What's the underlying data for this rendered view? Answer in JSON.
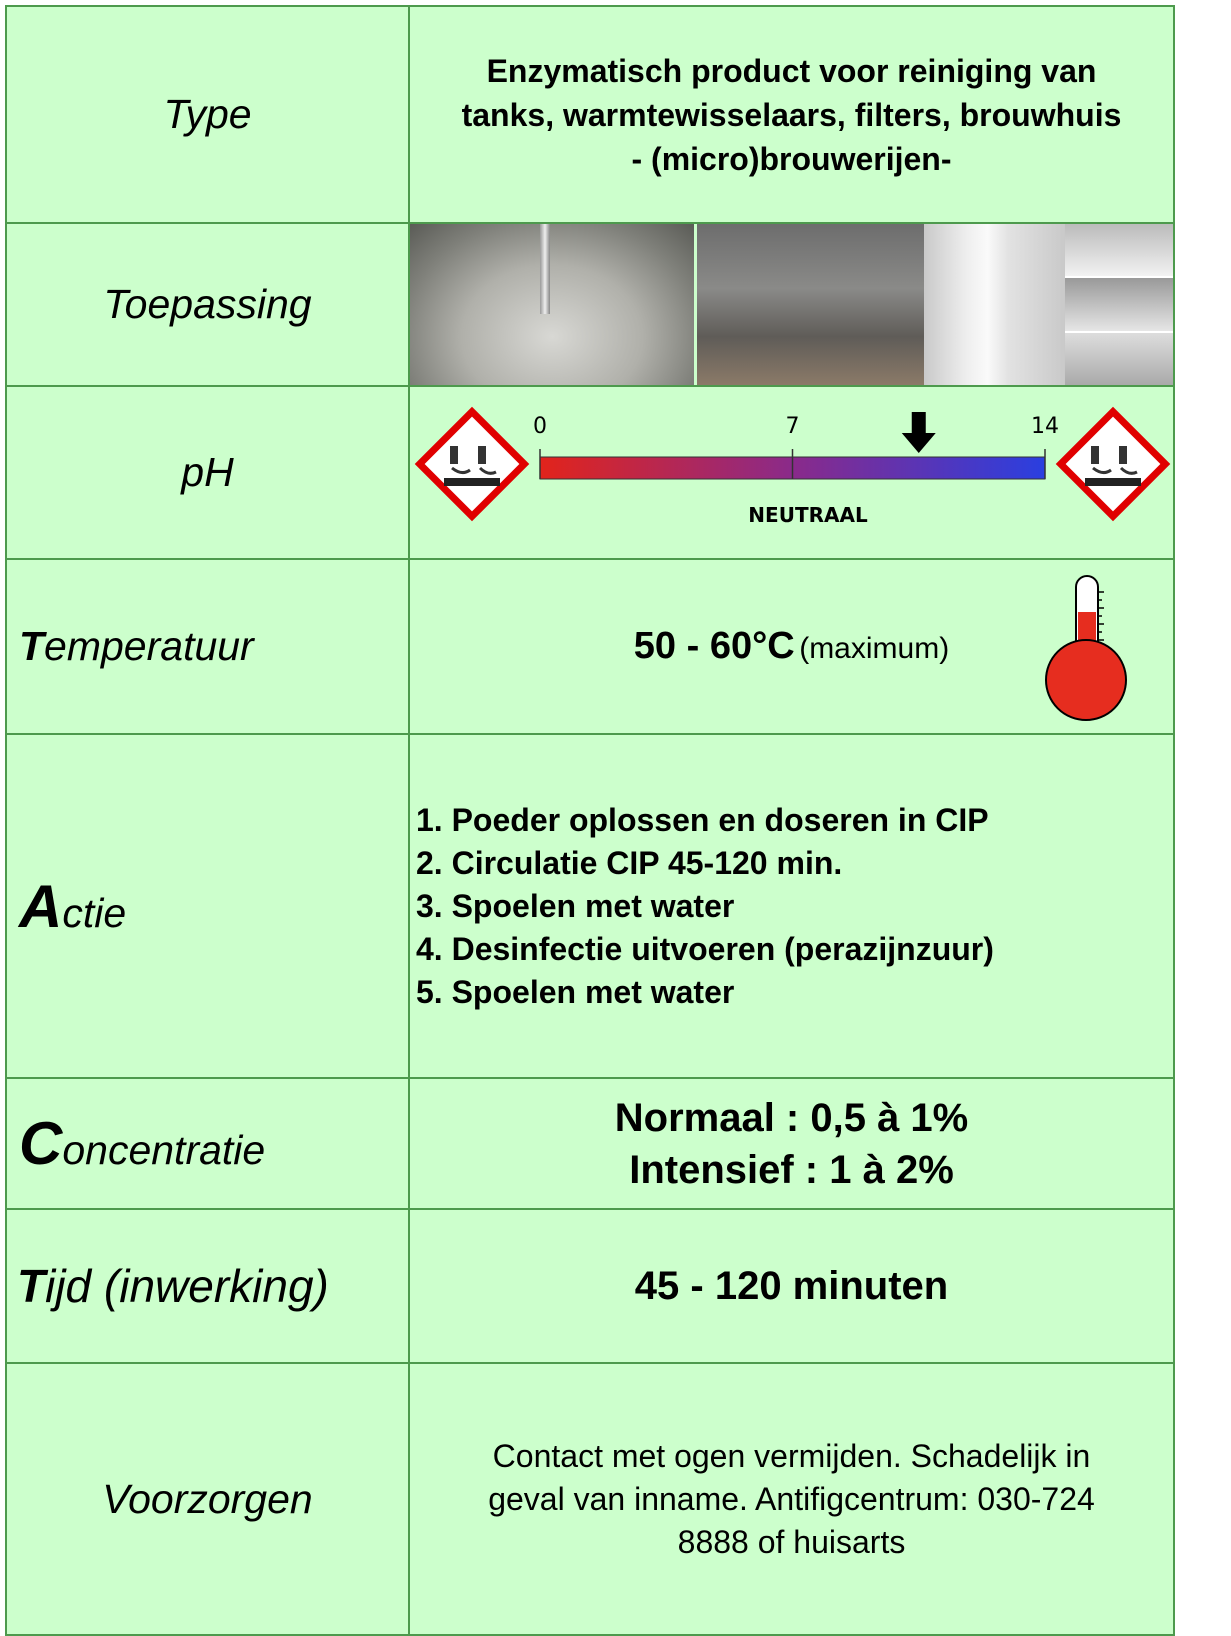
{
  "rows": [
    {
      "label": "Type",
      "lines": [
        "Enzymatisch product voor reiniging van",
        "tanks, warmtewisselaars, filters, brouwhuis",
        "- (micro)brouwerijen-"
      ]
    },
    {
      "label": "Toepassing"
    },
    {
      "label": "pH",
      "scale": {
        "ticks": [
          0,
          7,
          14
        ],
        "value": 10.5,
        "label": "NEUTRAAL"
      }
    },
    {
      "label": "Temperatuur",
      "value": "50 - 60°C",
      "note": "(maximum)"
    },
    {
      "label": "Actie",
      "steps": [
        "1. Poeder oplossen en doseren in CIP",
        "2. Circulatie CIP 45-120 min.",
        "3. Spoelen met water",
        "4. Desinfectie uitvoeren (perazijnzuur)",
        "5. Spoelen met water"
      ]
    },
    {
      "label": "Concentratie",
      "lines": [
        "Normaal : 0,5 à 1%",
        "Intensief : 1 à 2%"
      ]
    },
    {
      "label": "Tijd (inwerking)",
      "text": "45 - 120 minuten"
    },
    {
      "label": "Voorzorgen",
      "text": "Contact met ogen vermijden. Schadelijk in geval van inname. Antifigcentrum: 030-724 8888 of huisarts"
    }
  ]
}
